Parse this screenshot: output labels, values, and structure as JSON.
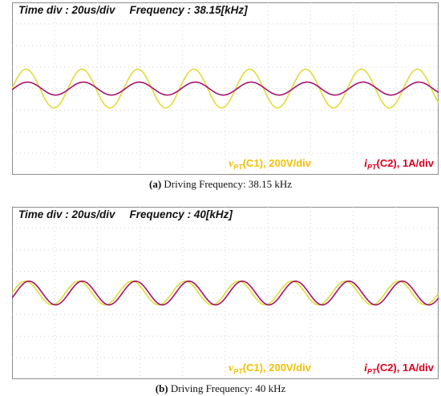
{
  "chart_data": [
    {
      "type": "line",
      "header": {
        "time_div": "Time div : 20us/div",
        "frequency": "Frequency : 38.15[kHz]"
      },
      "legend": [
        {
          "symbol": "v",
          "sub": "PT",
          "text": "(C1), 200V/div",
          "color": "#f2c100"
        },
        {
          "symbol": "i",
          "sub": "PT",
          "text": "(C2), 1A/div",
          "color": "#d9001f"
        }
      ],
      "caption_label": "(a)",
      "caption_text": "Driving Frequency: 38.15 kHz",
      "frequency_khz": 38.15,
      "time_per_div_us": 20,
      "divisions": 10,
      "series": [
        {
          "amplitude_div": 0.9,
          "phase_deg": 0,
          "color": "#e0dc3a"
        },
        {
          "amplitude_div": 0.3,
          "phase_deg": -10,
          "color": "#a3126e"
        }
      ]
    },
    {
      "type": "line",
      "header": {
        "time_div": "Time div : 20us/div",
        "frequency": "Frequency : 40[kHz]"
      },
      "legend": [
        {
          "symbol": "v",
          "sub": "PT",
          "text": "(C1), 200V/div",
          "color": "#f2c100"
        },
        {
          "symbol": "i",
          "sub": "PT",
          "text": "(C2), 1A/div",
          "color": "#d9001f"
        }
      ],
      "caption_label": "(b)",
      "caption_text": "Driving Frequency: 40 kHz",
      "frequency_khz": 40,
      "time_per_div_us": 20,
      "divisions": 10,
      "series": [
        {
          "amplitude_div": 0.55,
          "phase_deg": 0,
          "color": "#e0dc3a"
        },
        {
          "amplitude_div": 0.55,
          "phase_deg": -25,
          "color": "#a3126e"
        }
      ]
    }
  ]
}
